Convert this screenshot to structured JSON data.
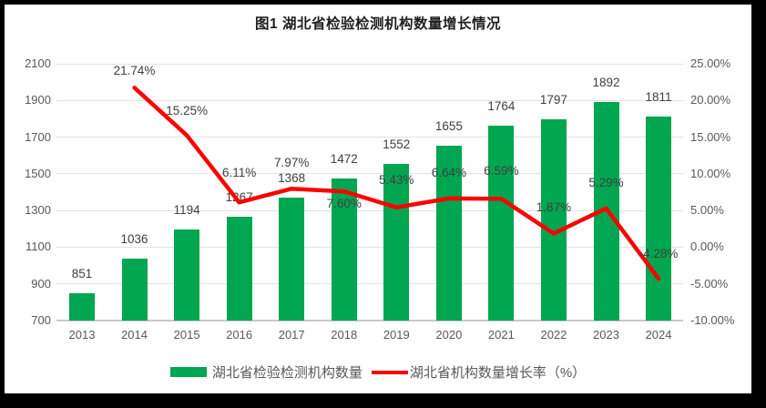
{
  "title": "图1 湖北省检验检测机构数量增长情况",
  "colors": {
    "frame": "#000000",
    "panel": "#FFFFFF",
    "bar": "#00A650",
    "line": "#FE0000",
    "grid": "#E2E2E2",
    "axis_text": "#595959",
    "data_label": "#404040",
    "title_text": "#1F1F1F"
  },
  "chart_data": {
    "type": "bar",
    "subtype": "combo-bar-line-dual-axis",
    "title": "图1 湖北省检验检测机构数量增长情况",
    "categories": [
      "2013",
      "2014",
      "2015",
      "2016",
      "2017",
      "2018",
      "2019",
      "2020",
      "2021",
      "2022",
      "2023",
      "2024"
    ],
    "series": [
      {
        "name": "湖北省检验检测机构数量",
        "type": "bar",
        "axis": "left",
        "color": "#00A650",
        "values": [
          851,
          1036,
          1194,
          1267,
          1368,
          1472,
          1552,
          1655,
          1764,
          1797,
          1892,
          1811
        ],
        "labels": [
          "851",
          "1036",
          "1194",
          "1267",
          "1368",
          "1472",
          "1552",
          "1655",
          "1764",
          "1797",
          "1892",
          "1811"
        ]
      },
      {
        "name": "湖北省机构数量增长率（%）",
        "type": "line",
        "axis": "right",
        "color": "#FE0000",
        "values": [
          null,
          21.74,
          15.25,
          6.11,
          7.97,
          7.6,
          5.43,
          6.64,
          6.59,
          1.87,
          5.29,
          -4.28
        ],
        "labels": [
          null,
          "21.74%",
          "15.25%",
          "6.11%",
          "7.97%",
          "7.60%",
          "5.43%",
          "6.64%",
          "6.59%",
          "1.87%",
          "5.29%",
          "-4.28%"
        ]
      }
    ],
    "left_axis": {
      "min": 700,
      "max": 2100,
      "step": 200,
      "tick_labels": [
        "2100",
        "1900",
        "1700",
        "1500",
        "1300",
        "1100",
        "900",
        "700"
      ]
    },
    "right_axis": {
      "min": -10,
      "max": 25,
      "step": 5,
      "tick_labels": [
        "25.00%",
        "20.00%",
        "15.00%",
        "10.00%",
        "5.00%",
        "0.00%",
        "-5.00%",
        "-10.00%"
      ]
    },
    "grid": true,
    "legend_position": "bottom"
  },
  "legend": {
    "bar_label": "湖北省检验检测机构数量",
    "line_label": "湖北省机构数量增长率（%）"
  }
}
